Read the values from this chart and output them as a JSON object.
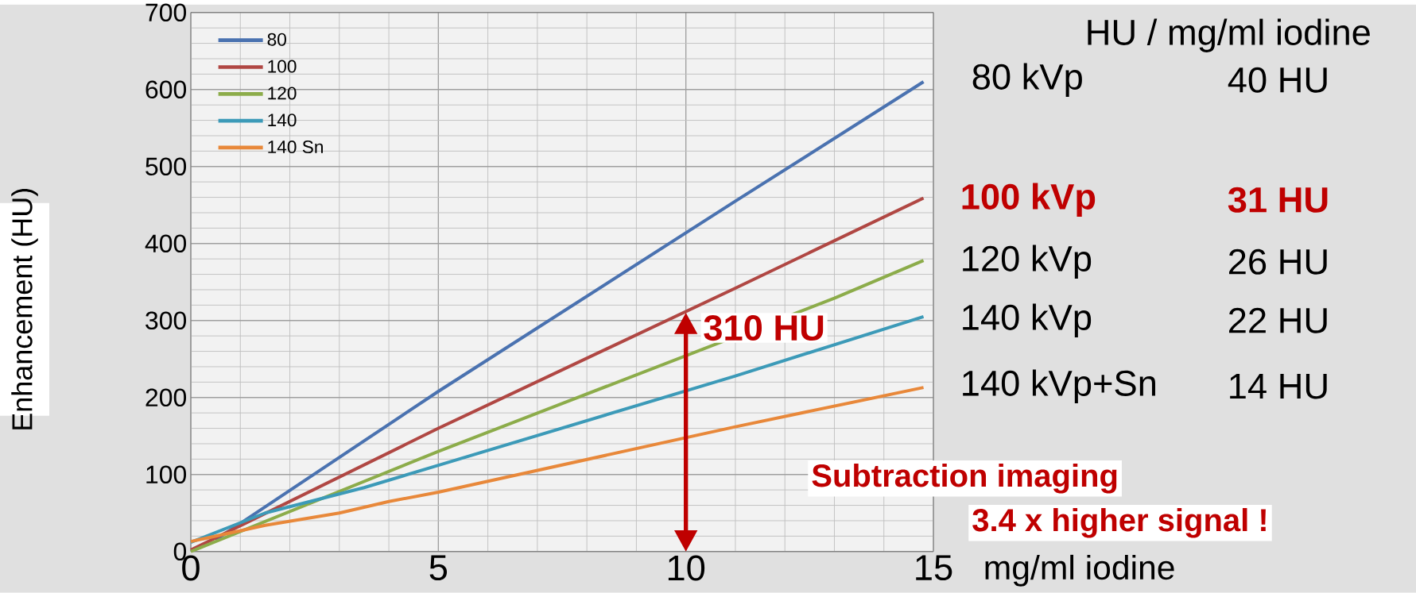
{
  "chart_data": {
    "type": "line",
    "xlabel": "mg/ml iodine",
    "ylabel": "Enhancement (HU)",
    "xlim": [
      0,
      15
    ],
    "ylim": [
      0,
      700
    ],
    "xticks": [
      0,
      5,
      10,
      15
    ],
    "yticks": [
      0,
      100,
      200,
      300,
      400,
      500,
      600,
      700
    ],
    "grid": true,
    "legend": "top left",
    "marker": "none",
    "line_style": "solid",
    "series": [
      {
        "name": "80",
        "color": "#4a72b0",
        "x": [
          0.5,
          5,
          11,
          14.8
        ],
        "values": [
          15,
          208,
          455,
          610
        ]
      },
      {
        "name": "100",
        "color": "#b04743",
        "x": [
          0,
          5,
          11,
          14.8
        ],
        "values": [
          2,
          160,
          342,
          459
        ]
      },
      {
        "name": "120",
        "color": "#8cac4a",
        "x": [
          0,
          5,
          13,
          14.8
        ],
        "values": [
          0,
          130,
          329,
          378
        ]
      },
      {
        "name": "140",
        "color": "#3c9ab8",
        "x": [
          0,
          1.5,
          3.5,
          5,
          11,
          14.8
        ],
        "values": [
          12,
          50,
          83,
          112,
          228,
          305
        ]
      },
      {
        "name": "140 Sn",
        "color": "#e8883a",
        "x": [
          0,
          1.5,
          3,
          4,
          5,
          11,
          14.8
        ],
        "values": [
          13,
          34,
          50,
          65,
          77,
          162,
          213
        ]
      }
    ],
    "annotations": [
      "HU / mg/ml iodine",
      "80 kVp",
      "40 HU",
      "100 kVp",
      "31 HU",
      "120 kVp",
      "26 HU",
      "140 kVp",
      "22 HU",
      "140 kVp+Sn",
      "14 HU",
      {
        "text": "310 HU",
        "x": 10,
        "y": 310
      },
      "Subtraction imaging",
      "3.4 x higher signal !"
    ]
  }
}
